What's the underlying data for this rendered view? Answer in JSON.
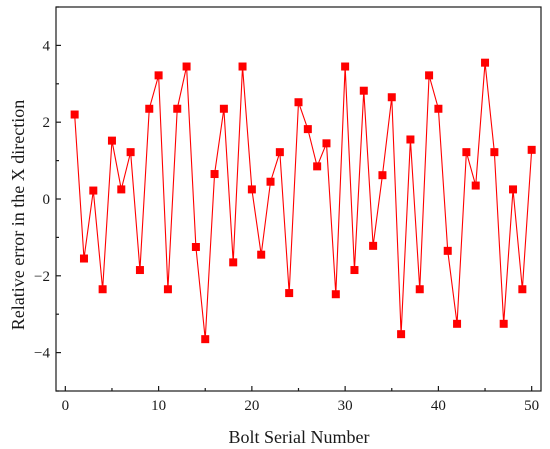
{
  "chart_data": {
    "type": "line",
    "title": "",
    "xlabel": "Bolt Serial Number",
    "ylabel": "Relative error in the X direction",
    "xlim": [
      -1,
      51
    ],
    "ylim": [
      -5,
      5
    ],
    "xticks": [
      0,
      10,
      20,
      30,
      40,
      50
    ],
    "yticks": [
      -4,
      -2,
      0,
      2,
      4
    ],
    "xtick_labels": [
      "0",
      "10",
      "20",
      "30",
      "40",
      "50"
    ],
    "ytick_labels": [
      "−4",
      "−2",
      "0",
      "2",
      "4"
    ],
    "grid": false,
    "marker": "square",
    "color": "#ff0000",
    "series": [
      {
        "x": [
          1,
          2,
          3,
          4,
          5,
          6,
          7,
          8,
          9,
          10,
          11,
          12,
          13,
          14,
          15,
          16,
          17,
          18,
          19,
          20,
          21,
          22,
          23,
          24,
          25,
          26,
          27,
          28,
          29,
          30,
          31,
          32,
          33,
          34,
          35,
          36,
          37,
          38,
          39,
          40,
          41,
          42,
          43,
          44,
          45,
          46,
          47,
          48,
          49,
          50
        ],
        "values": [
          2.2,
          -1.55,
          0.22,
          -2.35,
          1.52,
          0.25,
          1.22,
          -1.85,
          2.35,
          3.22,
          -2.35,
          2.35,
          3.45,
          -1.25,
          -3.65,
          0.65,
          2.35,
          -1.65,
          3.45,
          0.25,
          -1.45,
          0.45,
          1.22,
          -2.45,
          2.52,
          1.82,
          0.85,
          1.45,
          -2.48,
          3.45,
          -1.85,
          2.82,
          -1.22,
          0.62,
          2.65,
          -3.52,
          1.55,
          -2.35,
          3.22,
          2.35,
          -1.35,
          -3.25,
          1.22,
          0.35,
          3.55,
          1.22,
          -3.25,
          0.25,
          -2.35,
          1.28
        ]
      }
    ]
  }
}
